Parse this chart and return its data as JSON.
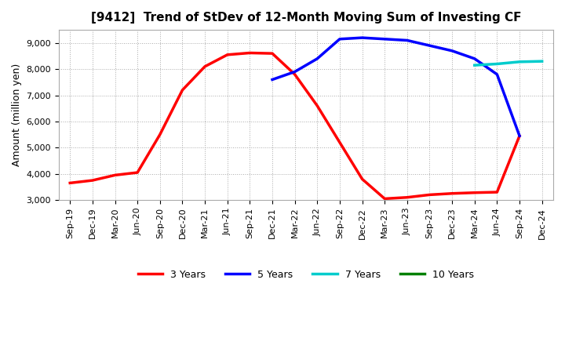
{
  "title": "[9412]  Trend of StDev of 12-Month Moving Sum of Investing CF",
  "ylabel": "Amount (million yen)",
  "ylim": [
    3000,
    9500
  ],
  "yticks": [
    3000,
    4000,
    5000,
    6000,
    7000,
    8000,
    9000
  ],
  "background_color": "#ffffff",
  "grid_color": "#aaaaaa",
  "series": {
    "3years": {
      "color": "#ff0000",
      "label": "3 Years",
      "x": [
        "Sep-19",
        "Dec-19",
        "Mar-20",
        "Jun-20",
        "Sep-20",
        "Dec-20",
        "Mar-21",
        "Jun-21",
        "Sep-21",
        "Dec-21",
        "Mar-22",
        "Jun-22",
        "Sep-22",
        "Dec-22",
        "Mar-23",
        "Jun-23",
        "Sep-23",
        "Dec-23",
        "Mar-24",
        "Jun-24",
        "Sep-24",
        "Dec-24"
      ],
      "y": [
        3650,
        3750,
        3950,
        4050,
        5500,
        7200,
        8100,
        8550,
        8620,
        8600,
        7800,
        6600,
        5200,
        3800,
        3050,
        3100,
        3200,
        3250,
        3280,
        3300,
        5450,
        null
      ]
    },
    "5years": {
      "color": "#0000ff",
      "label": "5 Years",
      "x": [
        "Dec-21",
        "Mar-22",
        "Jun-22",
        "Sep-22",
        "Dec-22",
        "Mar-23",
        "Jun-23",
        "Sep-23",
        "Dec-23",
        "Mar-24",
        "Jun-24",
        "Sep-24",
        "Dec-24"
      ],
      "y": [
        7600,
        7900,
        8400,
        9150,
        9200,
        9150,
        9100,
        8900,
        8700,
        8400,
        7800,
        5450,
        null
      ]
    },
    "7years": {
      "color": "#00cccc",
      "label": "7 Years",
      "x": [
        "Mar-24",
        "Jun-24",
        "Sep-24",
        "Dec-24"
      ],
      "y": [
        8150,
        8200,
        8280,
        8300
      ]
    },
    "10years": {
      "color": "#008000",
      "label": "10 Years",
      "x": [
        "Sep-24",
        "Dec-24"
      ],
      "y": [
        8300,
        null
      ]
    }
  },
  "xtick_labels": [
    "Sep-19",
    "Dec-19",
    "Mar-20",
    "Jun-20",
    "Sep-20",
    "Dec-20",
    "Mar-21",
    "Jun-21",
    "Sep-21",
    "Dec-21",
    "Mar-22",
    "Jun-22",
    "Sep-22",
    "Dec-22",
    "Mar-23",
    "Jun-23",
    "Sep-23",
    "Dec-23",
    "Mar-24",
    "Jun-24",
    "Sep-24",
    "Dec-24"
  ],
  "legend_loc": "lower center",
  "linewidth": 2.5
}
